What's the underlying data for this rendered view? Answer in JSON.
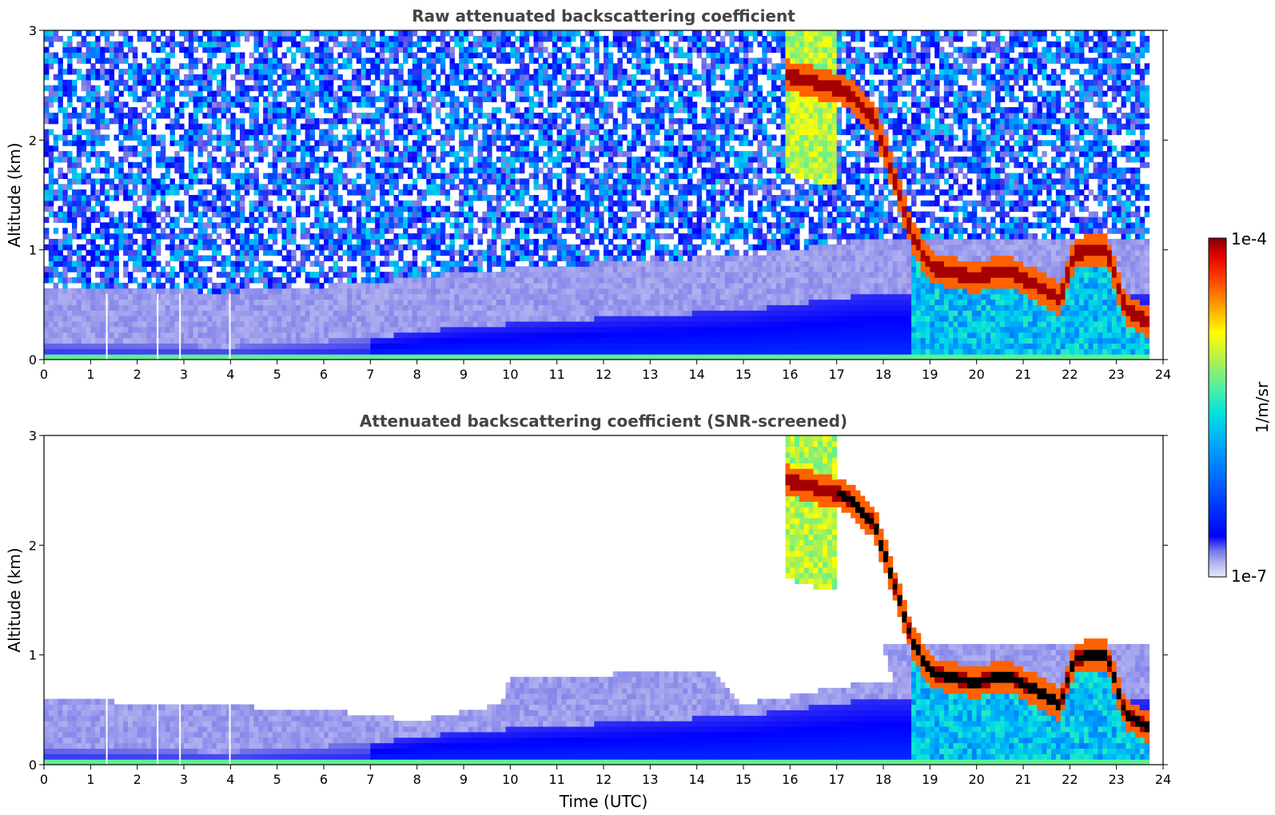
{
  "chart_data": [
    {
      "type": "heatmap",
      "title": "Raw attenuated backscattering coefficient",
      "xlabel": "",
      "ylabel": "Altitude (km)",
      "xlim": [
        0,
        24
      ],
      "ylim": [
        0,
        3
      ],
      "x_ticks": [
        "0",
        "1",
        "2",
        "3",
        "4",
        "5",
        "6",
        "7",
        "8",
        "9",
        "10",
        "11",
        "12",
        "13",
        "14",
        "15",
        "16",
        "17",
        "18",
        "19",
        "20",
        "21",
        "22",
        "23",
        "24"
      ],
      "y_ticks": [
        "0",
        "1",
        "2",
        "3"
      ],
      "data_end_hour": 23.7,
      "features": {
        "boundary_layer_top_km": [
          {
            "t": 0,
            "z": 0.15
          },
          {
            "t": 4,
            "z": 0.12
          },
          {
            "t": 7,
            "z": 0.2
          },
          {
            "t": 9,
            "z": 0.3
          },
          {
            "t": 12,
            "z": 0.38
          },
          {
            "t": 15,
            "z": 0.45
          },
          {
            "t": 17.8,
            "z": 0.6
          }
        ],
        "cloud_layer_km": [
          {
            "t": 15.9,
            "z": 2.6
          },
          {
            "t": 17.2,
            "z": 2.45
          },
          {
            "t": 17.8,
            "z": 2.2
          },
          {
            "t": 18.2,
            "z": 1.7
          },
          {
            "t": 18.6,
            "z": 1.15
          },
          {
            "t": 19,
            "z": 0.85
          },
          {
            "t": 20,
            "z": 0.75
          },
          {
            "t": 20.6,
            "z": 0.82
          },
          {
            "t": 21.2,
            "z": 0.7
          },
          {
            "t": 21.8,
            "z": 0.55
          },
          {
            "t": 22.1,
            "z": 0.98
          },
          {
            "t": 22.8,
            "z": 1.0
          },
          {
            "t": 23.2,
            "z": 0.45
          },
          {
            "t": 23.7,
            "z": 0.35
          }
        ]
      },
      "missing_profiles_hour": [
        1.33,
        2.42,
        2.9,
        3.97
      ]
    },
    {
      "type": "heatmap",
      "title": "Attenuated backscattering coefficient (SNR-screened)",
      "xlabel": "Time (UTC)",
      "ylabel": "Altitude (km)",
      "xlim": [
        0,
        24
      ],
      "ylim": [
        0,
        3
      ],
      "x_ticks": [
        "0",
        "1",
        "2",
        "3",
        "4",
        "5",
        "6",
        "7",
        "8",
        "9",
        "10",
        "11",
        "12",
        "13",
        "14",
        "15",
        "16",
        "17",
        "18",
        "19",
        "20",
        "21",
        "22",
        "23",
        "24"
      ],
      "y_ticks": [
        "0",
        "1",
        "2",
        "3"
      ],
      "data_end_hour": 23.7,
      "screened_top_km": [
        {
          "t": 0,
          "z": 0.6
        },
        {
          "t": 6,
          "z": 0.5
        },
        {
          "t": 8,
          "z": 0.4
        },
        {
          "t": 9.8,
          "z": 0.55
        },
        {
          "t": 10,
          "z": 0.8
        },
        {
          "t": 14.3,
          "z": 0.85
        },
        {
          "t": 15,
          "z": 0.55
        },
        {
          "t": 17.6,
          "z": 0.75
        }
      ],
      "missing_profiles_hour": [
        1.33,
        2.42,
        2.9,
        3.97
      ]
    }
  ],
  "colorbar": {
    "label": "1/m/sr",
    "max_label": "1e-4",
    "min_label": "1e-7",
    "colormap": [
      "#e8e8f8",
      "#b4b4f0",
      "#7070e8",
      "#0000ff",
      "#0050ff",
      "#00a0ff",
      "#00e0e0",
      "#50f0a0",
      "#b0f050",
      "#ffff00",
      "#ffa000",
      "#ff4000",
      "#e00000",
      "#800000"
    ]
  }
}
